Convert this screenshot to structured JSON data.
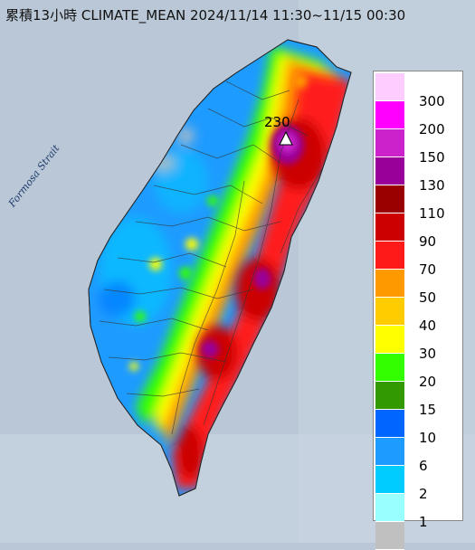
{
  "header": {
    "title": "累積13小時 CLIMATE_MEAN 2024/11/14 11:30~11/15 00:30"
  },
  "map": {
    "water_label": "Formosa Strait",
    "peak_value": "230",
    "peak_marker_icon": "triangle-icon"
  },
  "legend": {
    "items": [
      {
        "label": "300",
        "color": "#ffccff"
      },
      {
        "label": "200",
        "color": "#ff00ff"
      },
      {
        "label": "150",
        "color": "#cc22cc"
      },
      {
        "label": "130",
        "color": "#990099"
      },
      {
        "label": "110",
        "color": "#990000"
      },
      {
        "label": "90",
        "color": "#cc0000"
      },
      {
        "label": "70",
        "color": "#ff1a1a"
      },
      {
        "label": "50",
        "color": "#ff9900"
      },
      {
        "label": "40",
        "color": "#ffcc00"
      },
      {
        "label": "30",
        "color": "#ffff00"
      },
      {
        "label": "20",
        "color": "#33ff00"
      },
      {
        "label": "15",
        "color": "#339900"
      },
      {
        "label": "10",
        "color": "#0066ff"
      },
      {
        "label": "6",
        "color": "#1e9bff"
      },
      {
        "label": "2",
        "color": "#00ccff"
      },
      {
        "label": "1",
        "color": "#99ffff"
      },
      {
        "label": "",
        "color": "#c0c0c0"
      }
    ]
  }
}
